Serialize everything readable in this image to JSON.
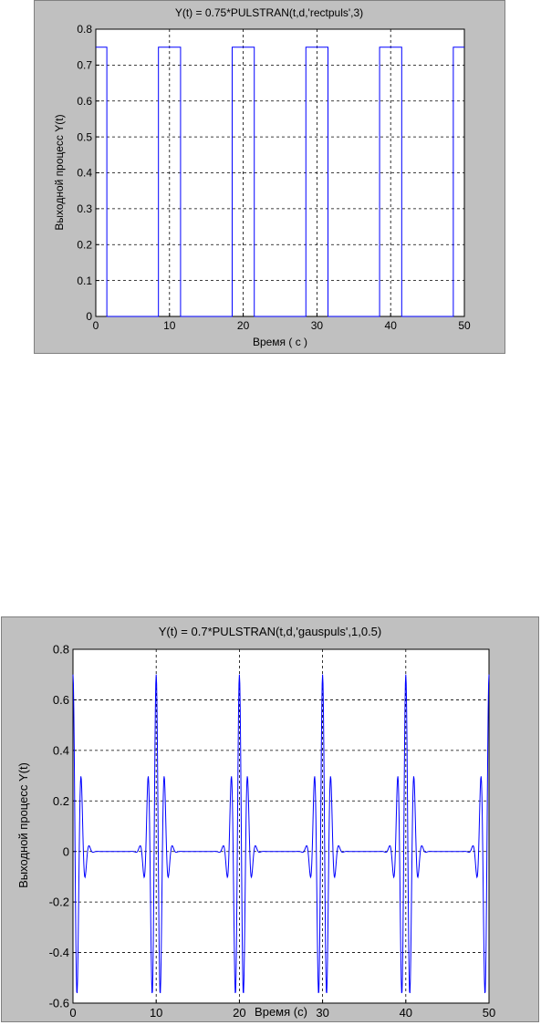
{
  "figures": [
    {
      "title": "Y(t) = 0.75*PULSTRAN(t,d,'rectpuls',3)",
      "xlabel": "Время ( с )",
      "ylabel": "Выходной процесс  Y(t)",
      "xticks": [
        "0",
        "10",
        "20",
        "30",
        "40",
        "50"
      ],
      "yticks": [
        "0",
        "0.1",
        "0.2",
        "0.3",
        "0.4",
        "0.5",
        "0.6",
        "0.7",
        "0.8"
      ]
    },
    {
      "title": "Y(t) = 0.7*PULSTRAN(t,d,'gauspuls',1,0.5)",
      "xlabel": "Время (с)",
      "ylabel": "Выходной процесс  Y(t)",
      "xticks": [
        "0",
        "10",
        "20",
        "30",
        "40",
        "50"
      ],
      "yticks": [
        "-0.6",
        "-0.4",
        "-0.2",
        "0",
        "0.2",
        "0.4",
        "0.6",
        "0.8"
      ]
    }
  ],
  "chart_data": [
    {
      "type": "line",
      "title": "Y(t) = 0.75*PULSTRAN(t,d,'rectpuls',3)",
      "xlabel": "Время ( с )",
      "ylabel": "Выходной процесс  Y(t)",
      "xlim": [
        0,
        50
      ],
      "ylim": [
        0,
        0.8
      ],
      "grid": true,
      "line_color": "#0000ff",
      "pulse_function": "rectpuls",
      "amplitude": 0.75,
      "pulse_width": 3,
      "pulse_centers": [
        0,
        10,
        20,
        30,
        40,
        50
      ]
    },
    {
      "type": "line",
      "title": "Y(t) = 0.7*PULSTRAN(t,d,'gauspuls',1,0.5)",
      "xlabel": "Время (с)",
      "ylabel": "Выходной процесс  Y(t)",
      "xlim": [
        0,
        50
      ],
      "ylim": [
        -0.6,
        0.8
      ],
      "grid": true,
      "line_color": "#0000ff",
      "pulse_function": "gauspuls",
      "amplitude": 0.7,
      "center_frequency": 1,
      "bandwidth": 0.5,
      "pulse_centers": [
        0,
        10,
        20,
        30,
        40,
        50
      ]
    }
  ]
}
